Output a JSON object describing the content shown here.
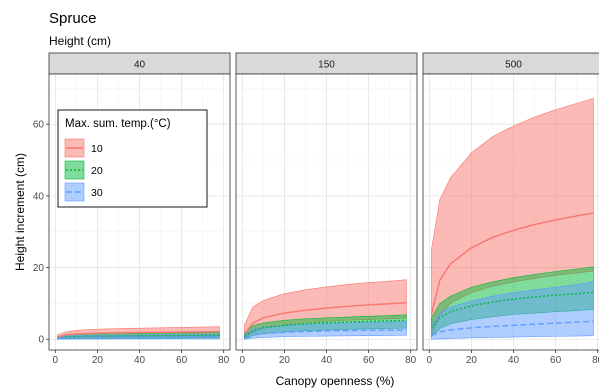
{
  "chart_data": {
    "type": "area",
    "title": "Spruce",
    "subtitle": "Height (cm)",
    "xlabel": "Canopy openness (%)",
    "ylabel": "Height increment (cm)",
    "xlim": [
      0,
      80
    ],
    "ylim": [
      0,
      70
    ],
    "x_ticks": [
      0,
      20,
      40,
      60,
      80
    ],
    "y_ticks": [
      0,
      20,
      40,
      60
    ],
    "grid": true,
    "legend": {
      "title": "Max. sum. temp.(°C)",
      "placement": "top-left"
    },
    "colors": {
      "10": "#F8766D",
      "20": "#00BA38",
      "30": "#619CFF"
    },
    "x": [
      1,
      5,
      10,
      20,
      30,
      40,
      50,
      60,
      70,
      78
    ],
    "panels": [
      {
        "label": "40",
        "series": [
          {
            "name": "10",
            "line": "solid",
            "mean": [
              0.6,
              1.2,
              1.5,
              1.7,
              1.8,
              1.9,
              1.95,
              2.0,
              2.05,
              2.1
            ],
            "lower": [
              0.1,
              0.3,
              0.5,
              0.6,
              0.7,
              0.75,
              0.8,
              0.82,
              0.85,
              0.9
            ],
            "upper": [
              1.2,
              2.0,
              2.5,
              2.8,
              3.0,
              3.1,
              3.2,
              3.3,
              3.4,
              3.5
            ]
          },
          {
            "name": "20",
            "line": "dotted",
            "mean": [
              0.3,
              0.6,
              0.75,
              0.85,
              0.9,
              0.95,
              1.0,
              1.0,
              1.05,
              1.05
            ],
            "lower": [
              0.0,
              0.1,
              0.2,
              0.25,
              0.3,
              0.3,
              0.32,
              0.33,
              0.35,
              0.35
            ],
            "upper": [
              0.7,
              1.2,
              1.4,
              1.55,
              1.65,
              1.7,
              1.75,
              1.8,
              1.85,
              1.9
            ]
          },
          {
            "name": "30",
            "line": "dashed",
            "mean": [
              0.2,
              0.4,
              0.5,
              0.55,
              0.6,
              0.62,
              0.65,
              0.66,
              0.68,
              0.7
            ],
            "lower": [
              0.0,
              0.0,
              0.05,
              0.05,
              0.1,
              0.1,
              0.1,
              0.1,
              0.1,
              0.1
            ],
            "upper": [
              0.5,
              0.9,
              1.0,
              1.1,
              1.2,
              1.25,
              1.3,
              1.3,
              1.35,
              1.4
            ]
          }
        ]
      },
      {
        "label": "150",
        "series": [
          {
            "name": "10",
            "line": "solid",
            "mean": [
              1.5,
              4.5,
              6.0,
              7.3,
              8.1,
              8.7,
              9.2,
              9.6,
              9.9,
              10.2
            ],
            "lower": [
              0.3,
              1.8,
              3.0,
              4.0,
              4.6,
              5.0,
              5.3,
              5.5,
              5.7,
              5.9
            ],
            "upper": [
              4.0,
              9.0,
              10.8,
              12.7,
              13.8,
              14.6,
              15.3,
              15.8,
              16.2,
              16.6
            ]
          },
          {
            "name": "20",
            "line": "dotted",
            "mean": [
              0.8,
              2.4,
              3.2,
              3.9,
              4.3,
              4.6,
              4.8,
              5.0,
              5.15,
              5.3
            ],
            "lower": [
              0.1,
              1.0,
              1.6,
              2.1,
              2.4,
              2.6,
              2.75,
              2.9,
              3.0,
              3.1
            ],
            "upper": [
              1.8,
              3.8,
              4.6,
              5.3,
              5.7,
              6.0,
              6.2,
              6.4,
              6.6,
              6.8
            ]
          },
          {
            "name": "30",
            "line": "dashed",
            "mean": [
              0.4,
              1.2,
              1.6,
              1.95,
              2.15,
              2.3,
              2.4,
              2.5,
              2.55,
              2.6
            ],
            "lower": [
              0.0,
              0.3,
              0.5,
              0.7,
              0.8,
              0.9,
              0.95,
              1.0,
              1.05,
              1.1
            ],
            "upper": [
              1.2,
              2.8,
              3.4,
              3.9,
              4.2,
              4.4,
              4.6,
              4.7,
              4.85,
              5.0
            ]
          }
        ]
      },
      {
        "label": "500",
        "series": [
          {
            "name": "10",
            "line": "solid",
            "mean": [
              7.0,
              16.5,
              21.0,
              25.5,
              28.4,
              30.4,
              32.0,
              33.3,
              34.4,
              35.2
            ],
            "lower": [
              1.0,
              6.5,
              10.0,
              13.0,
              14.8,
              16.0,
              17.0,
              17.8,
              18.5,
              19.0
            ],
            "upper": [
              25.0,
              39.0,
              45.0,
              52.0,
              56.5,
              59.5,
              62.0,
              64.0,
              65.8,
              67.2
            ]
          },
          {
            "name": "20",
            "line": "dotted",
            "mean": [
              3.0,
              6.0,
              7.7,
              9.3,
              10.4,
              11.2,
              11.8,
              12.3,
              12.7,
              13.1
            ],
            "lower": [
              0.7,
              3.0,
              4.3,
              5.5,
              6.3,
              6.9,
              7.3,
              7.7,
              8.0,
              8.3
            ],
            "upper": [
              6.0,
              10.0,
              12.0,
              14.5,
              16.0,
              17.2,
              18.1,
              18.9,
              19.6,
              20.2
            ]
          },
          {
            "name": "30",
            "line": "dashed",
            "mean": [
              1.0,
              2.1,
              2.6,
              3.2,
              3.6,
              3.9,
              4.2,
              4.5,
              4.8,
              5.0
            ],
            "lower": [
              0.0,
              0.1,
              0.2,
              0.4,
              0.5,
              0.6,
              0.7,
              0.8,
              0.9,
              1.0
            ],
            "upper": [
              4.0,
              7.5,
              9.0,
              10.7,
              12.0,
              13.0,
              13.8,
              14.5,
              15.3,
              16.0
            ]
          }
        ]
      }
    ]
  }
}
